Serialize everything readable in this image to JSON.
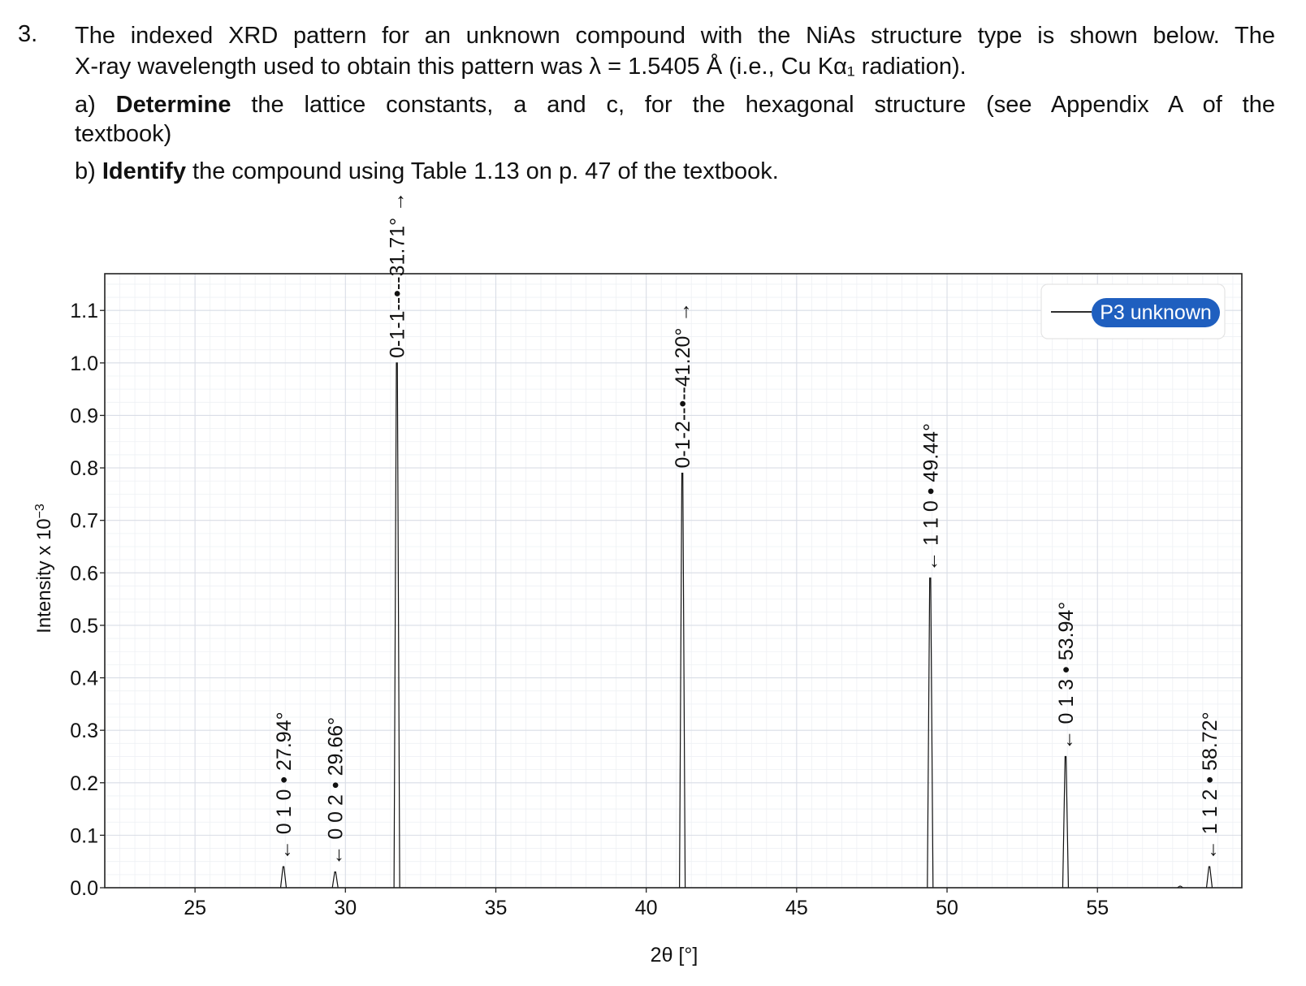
{
  "question": {
    "number": "3.",
    "line1": "The indexed XRD pattern for an unknown compound with the NiAs structure type is shown below. The",
    "line2": "X-ray wavelength used to obtain this pattern was λ = 1.5405 Å (i.e., Cu Kα₁ radiation).",
    "part_a_prefix": "a) ",
    "part_a_bold": "Determine",
    "part_a_rest": " the lattice constants, a and c, for the hexagonal structure (see Appendix A of the",
    "part_a_line2": "textbook)",
    "part_b_prefix": "b) ",
    "part_b_bold": "Identify",
    "part_b_rest": " the compound using Table 1.13 on p. 47 of the textbook."
  },
  "chart_data": {
    "type": "line",
    "xlabel": "2θ [°]",
    "ylabel": "Intensity x 10",
    "ylabel_superscript": "−3",
    "xlim": [
      22,
      59.8
    ],
    "ylim": [
      0,
      1.17
    ],
    "xticks": [
      25,
      30,
      35,
      40,
      45,
      50,
      55
    ],
    "yticks": [
      "0.0",
      "0.1",
      "0.2",
      "0.3",
      "0.4",
      "0.5",
      "0.6",
      "0.7",
      "0.8",
      "0.9",
      "1.0",
      "1.1"
    ],
    "grid": true,
    "legend": {
      "placement": "top-right",
      "entries": [
        "P3 unknown"
      ],
      "color": "#1f5fbf"
    },
    "series": [
      {
        "name": "P3 unknown",
        "peaks": [
          {
            "two_theta": 27.94,
            "intensity": 0.04,
            "label": "0 1 0 • 27.94°"
          },
          {
            "two_theta": 29.66,
            "intensity": 0.03,
            "label": "0 0 2 • 29.66°"
          },
          {
            "two_theta": 31.71,
            "intensity": 1.0,
            "label": "0-1-1--•--31.71°"
          },
          {
            "two_theta": 41.2,
            "intensity": 0.79,
            "label": "0-1-2--•--41.20°"
          },
          {
            "two_theta": 49.44,
            "intensity": 0.59,
            "label": "1 1 0 • 49.44°"
          },
          {
            "two_theta": 53.94,
            "intensity": 0.25,
            "label": "0 1 3 • 53.94°"
          },
          {
            "two_theta": 57.75,
            "intensity": 0.003,
            "label": ""
          },
          {
            "two_theta": 58.72,
            "intensity": 0.04,
            "label": "1 1 2 • 58.72°"
          }
        ]
      }
    ]
  }
}
